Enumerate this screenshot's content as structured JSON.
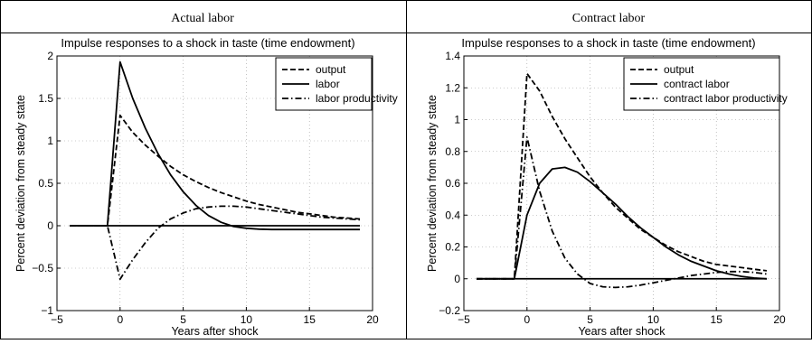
{
  "panel_headers": [
    "Actual labor",
    "Contract labor"
  ],
  "chart_data": [
    {
      "type": "line",
      "title": "Impulse responses to a shock in taste (time endowment)",
      "xlabel": "Years after shock",
      "ylabel": "Percent deviation from steady state",
      "xlim": [
        -5,
        20
      ],
      "ylim": [
        -1,
        2
      ],
      "xticks": [
        -5,
        0,
        5,
        10,
        15,
        20
      ],
      "yticks": [
        -1,
        -0.5,
        0,
        0.5,
        1,
        1.5,
        2
      ],
      "grid": true,
      "legend_position": "top-right",
      "baseline": {
        "x": [
          -4,
          19
        ],
        "y": 0
      },
      "series": [
        {
          "name": "output",
          "style": "dashed",
          "x": [
            -4,
            -1,
            0,
            1,
            2,
            3,
            4,
            5,
            6,
            7,
            8,
            9,
            10,
            11,
            12,
            13,
            14,
            15,
            16,
            17,
            18,
            19
          ],
          "y": [
            0,
            0,
            1.3,
            1.1,
            0.95,
            0.82,
            0.7,
            0.6,
            0.52,
            0.45,
            0.39,
            0.34,
            0.29,
            0.25,
            0.22,
            0.19,
            0.16,
            0.14,
            0.12,
            0.1,
            0.09,
            0.08
          ]
        },
        {
          "name": "labor",
          "style": "solid",
          "x": [
            -4,
            -1,
            0,
            1,
            2,
            3,
            4,
            5,
            6,
            7,
            8,
            9,
            10,
            11,
            12,
            13,
            14,
            15,
            16,
            17,
            18,
            19
          ],
          "y": [
            0,
            0,
            1.93,
            1.5,
            1.15,
            0.85,
            0.6,
            0.4,
            0.24,
            0.12,
            0.04,
            -0.01,
            -0.03,
            -0.04,
            -0.045,
            -0.045,
            -0.045,
            -0.045,
            -0.045,
            -0.045,
            -0.045,
            -0.045
          ]
        },
        {
          "name": "labor productivity",
          "style": "dashdot",
          "x": [
            -4,
            -1,
            0,
            1,
            2,
            3,
            4,
            5,
            6,
            7,
            8,
            9,
            10,
            11,
            12,
            13,
            14,
            15,
            16,
            17,
            18,
            19
          ],
          "y": [
            0,
            0,
            -0.63,
            -0.4,
            -0.2,
            -0.03,
            0.08,
            0.15,
            0.2,
            0.22,
            0.23,
            0.23,
            0.22,
            0.2,
            0.18,
            0.16,
            0.14,
            0.12,
            0.1,
            0.09,
            0.08,
            0.07
          ]
        }
      ]
    },
    {
      "type": "line",
      "title": "Impulse responses to a shock in taste (time endowment)",
      "xlabel": "Years after shock",
      "ylabel": "Percent deviation from steady state",
      "xlim": [
        -5,
        20
      ],
      "ylim": [
        -0.2,
        1.4
      ],
      "xticks": [
        -5,
        0,
        5,
        10,
        15,
        20
      ],
      "yticks": [
        -0.2,
        0,
        0.2,
        0.4,
        0.6,
        0.8,
        1,
        1.2,
        1.4
      ],
      "grid": true,
      "legend_position": "top-right",
      "baseline": {
        "x": [
          -4,
          19
        ],
        "y": 0
      },
      "series": [
        {
          "name": "output",
          "style": "dashed",
          "x": [
            -4,
            -1,
            0,
            1,
            2,
            3,
            4,
            5,
            6,
            7,
            8,
            9,
            10,
            11,
            12,
            13,
            14,
            15,
            16,
            17,
            18,
            19
          ],
          "y": [
            0,
            0,
            1.29,
            1.18,
            1.02,
            0.88,
            0.76,
            0.64,
            0.54,
            0.45,
            0.38,
            0.31,
            0.26,
            0.21,
            0.17,
            0.14,
            0.11,
            0.09,
            0.08,
            0.07,
            0.06,
            0.05
          ]
        },
        {
          "name": "contract labor",
          "style": "solid",
          "x": [
            -4,
            -1,
            0,
            1,
            2,
            3,
            4,
            5,
            6,
            7,
            8,
            9,
            10,
            11,
            12,
            13,
            14,
            15,
            16,
            17,
            18,
            19
          ],
          "y": [
            0,
            0,
            0.4,
            0.6,
            0.69,
            0.7,
            0.67,
            0.61,
            0.54,
            0.47,
            0.39,
            0.32,
            0.26,
            0.2,
            0.15,
            0.11,
            0.08,
            0.05,
            0.03,
            0.015,
            0.005,
            0
          ]
        },
        {
          "name": "contract labor productivity",
          "style": "dashdot",
          "x": [
            -4,
            -1,
            0,
            1,
            2,
            3,
            4,
            5,
            6,
            7,
            8,
            9,
            10,
            11,
            12,
            13,
            14,
            15,
            16,
            17,
            18,
            19
          ],
          "y": [
            0,
            0,
            0.89,
            0.55,
            0.3,
            0.13,
            0.03,
            -0.03,
            -0.05,
            -0.055,
            -0.05,
            -0.04,
            -0.025,
            -0.01,
            0.005,
            0.02,
            0.03,
            0.04,
            0.045,
            0.045,
            0.04,
            0.03
          ]
        }
      ]
    }
  ]
}
